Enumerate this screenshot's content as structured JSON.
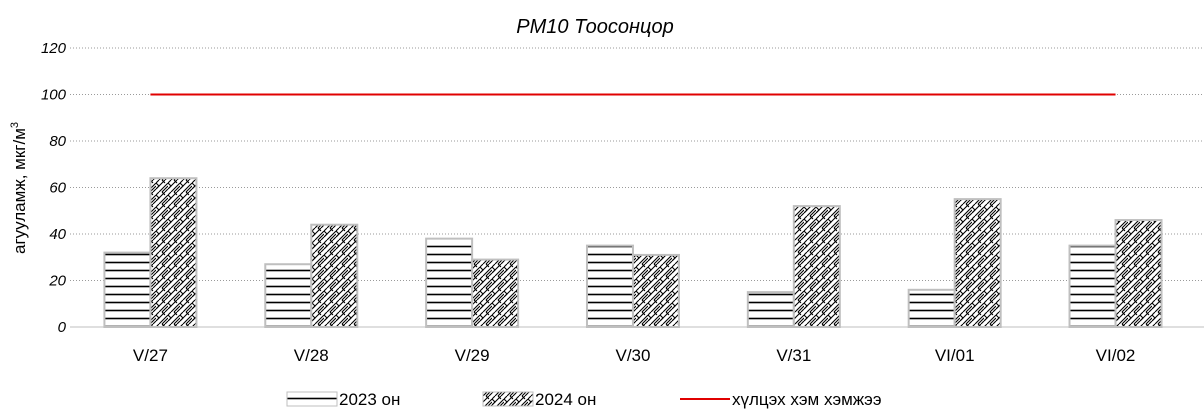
{
  "chart_data": {
    "type": "bar",
    "title": "PM10 Тоосонцор",
    "ylabel": "агууламж, мкг/м",
    "ylabel_sup": "3",
    "xlabel": "",
    "ylim": [
      0,
      120
    ],
    "yticks": [
      "0",
      "20",
      "40",
      "60",
      "80",
      "100",
      "120"
    ],
    "grid": true,
    "legend_position": "bottom",
    "categories": [
      "V/27",
      "V/28",
      "V/29",
      "V/30",
      "V/31",
      "VI/01",
      "VI/02"
    ],
    "series": [
      {
        "name": "2023 он",
        "type": "bar",
        "pattern": "horizontal-lines",
        "values": [
          32,
          27,
          38,
          35,
          15,
          16,
          35
        ]
      },
      {
        "name": "2024 он",
        "type": "bar",
        "pattern": "zigzag",
        "values": [
          64,
          44,
          29,
          31,
          52,
          55,
          46
        ]
      },
      {
        "name": "хүлцэх хэм хэмжээ",
        "type": "line",
        "color": "#e00000",
        "values": [
          100,
          100,
          100,
          100,
          100,
          100,
          100
        ]
      }
    ]
  }
}
